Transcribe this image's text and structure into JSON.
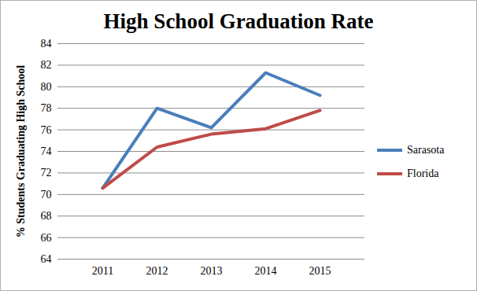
{
  "chart_data": {
    "type": "line",
    "title": "High School Graduation Rate",
    "y_label": "% Students Graduating High School",
    "categories": [
      "2011",
      "2012",
      "2013",
      "2014",
      "2015"
    ],
    "series": [
      {
        "name": "Sarasota",
        "color": "#4a7ebb",
        "values": [
          70.6,
          78.0,
          76.2,
          81.3,
          79.2
        ]
      },
      {
        "name": "Florida",
        "color": "#be4b48",
        "values": [
          70.6,
          74.4,
          75.6,
          76.1,
          77.8
        ]
      }
    ],
    "ylim": [
      64,
      84
    ],
    "yticks": [
      64,
      66,
      68,
      70,
      72,
      74,
      76,
      78,
      80,
      82,
      84
    ],
    "grid": true,
    "legend": "right"
  }
}
